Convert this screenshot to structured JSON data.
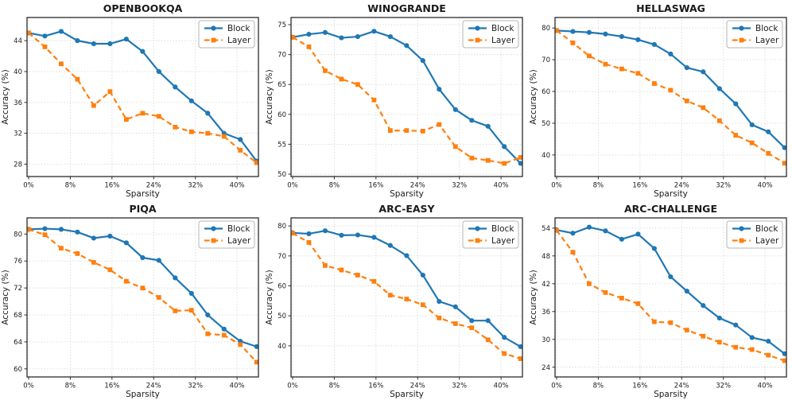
{
  "figure": {
    "background": "#ffffff",
    "grid_style": "dotted",
    "legend_position": "upper right",
    "colors": {
      "block": "#1f77b4",
      "layer": "#ff7f0e"
    }
  },
  "chart_data": [
    {
      "type": "line",
      "title": "OPENBOOKQA",
      "xlabel": "Sparsity",
      "ylabel": "Accuracy (%)",
      "x": [
        0,
        3.125,
        6.25,
        9.375,
        12.5,
        15.625,
        18.75,
        21.875,
        25,
        28.125,
        31.25,
        34.375,
        37.5,
        40.625,
        43.75
      ],
      "xtick_values": [
        0,
        8,
        16,
        24,
        32,
        40
      ],
      "xtick_labels": [
        "0%",
        "8%",
        "16%",
        "24%",
        "32%",
        "40%"
      ],
      "yticks": [
        28,
        32,
        36,
        40,
        44
      ],
      "ylim": [
        26.4,
        47.0
      ],
      "xlim": [
        -0.3,
        44.1
      ],
      "grid": true,
      "legend": "upper right",
      "series": [
        {
          "name": "Block",
          "color": "#1f77b4",
          "style": "solid",
          "marker": "circle",
          "values": [
            45.0,
            44.6,
            45.2,
            44.0,
            43.6,
            43.6,
            44.2,
            42.6,
            40.0,
            38.0,
            36.2,
            34.6,
            32.0,
            31.2,
            28.4
          ]
        },
        {
          "name": "Layer",
          "color": "#ff7f0e",
          "style": "dashed",
          "marker": "square",
          "values": [
            45.0,
            43.2,
            41.0,
            39.0,
            35.6,
            37.4,
            33.8,
            34.6,
            34.2,
            32.8,
            32.2,
            32.0,
            31.6,
            29.8,
            28.2
          ]
        }
      ]
    },
    {
      "type": "line",
      "title": "WINOGRANDE",
      "xlabel": "Sparsity",
      "ylabel": "Accuracy (%)",
      "x": [
        0,
        3.125,
        6.25,
        9.375,
        12.5,
        15.625,
        18.75,
        21.875,
        25,
        28.125,
        31.25,
        34.375,
        37.5,
        40.625,
        43.75
      ],
      "xtick_values": [
        0,
        8,
        16,
        24,
        32,
        40
      ],
      "xtick_labels": [
        "0%",
        "8%",
        "16%",
        "24%",
        "32%",
        "40%"
      ],
      "yticks": [
        50,
        55,
        60,
        65,
        70,
        75
      ],
      "ylim": [
        49.6,
        76.2
      ],
      "xlim": [
        -0.3,
        44.1
      ],
      "grid": true,
      "legend": "upper right",
      "series": [
        {
          "name": "Block",
          "color": "#1f77b4",
          "style": "solid",
          "marker": "circle",
          "values": [
            72.9,
            73.4,
            73.7,
            72.8,
            73.0,
            73.9,
            73.0,
            71.5,
            69.0,
            64.2,
            60.8,
            59.0,
            58.0,
            54.6,
            51.8
          ]
        },
        {
          "name": "Layer",
          "color": "#ff7f0e",
          "style": "dashed",
          "marker": "square",
          "values": [
            72.9,
            71.3,
            67.3,
            65.9,
            65.0,
            62.4,
            57.3,
            57.3,
            57.2,
            58.3,
            54.6,
            52.7,
            52.3,
            51.8,
            52.8
          ]
        }
      ]
    },
    {
      "type": "line",
      "title": "HELLASWAG",
      "xlabel": "Sparsity",
      "ylabel": "Accuracy (%)",
      "x": [
        0,
        3.125,
        6.25,
        9.375,
        12.5,
        15.625,
        18.75,
        21.875,
        25,
        28.125,
        31.25,
        34.375,
        37.5,
        40.625,
        43.75
      ],
      "xtick_values": [
        0,
        8,
        16,
        24,
        32,
        40
      ],
      "xtick_labels": [
        "0%",
        "8%",
        "16%",
        "24%",
        "32%",
        "40%"
      ],
      "yticks": [
        40,
        50,
        60,
        70,
        80
      ],
      "ylim": [
        33.2,
        83.3
      ],
      "xlim": [
        -0.3,
        44.1
      ],
      "grid": true,
      "legend": "upper right",
      "series": [
        {
          "name": "Block",
          "color": "#1f77b4",
          "style": "solid",
          "marker": "circle",
          "values": [
            79.2,
            78.9,
            78.6,
            78.1,
            77.3,
            76.3,
            74.8,
            71.8,
            67.5,
            66.2,
            60.9,
            56.1,
            49.5,
            47.3,
            42.3
          ]
        },
        {
          "name": "Layer",
          "color": "#ff7f0e",
          "style": "dashed",
          "marker": "square",
          "values": [
            79.2,
            75.3,
            71.2,
            68.6,
            67.1,
            65.7,
            62.5,
            60.4,
            57.0,
            54.9,
            50.8,
            46.2,
            43.8,
            40.5,
            37.4
          ]
        }
      ]
    },
    {
      "type": "line",
      "title": "PIQA",
      "xlabel": "Sparsity",
      "ylabel": "Accuracy (%)",
      "x": [
        0,
        3.125,
        6.25,
        9.375,
        12.5,
        15.625,
        18.75,
        21.875,
        25,
        28.125,
        31.25,
        34.375,
        37.5,
        40.625,
        43.75
      ],
      "xtick_values": [
        0,
        8,
        16,
        24,
        32,
        40
      ],
      "xtick_labels": [
        "0%",
        "8%",
        "16%",
        "24%",
        "32%",
        "40%"
      ],
      "yticks": [
        60,
        64,
        68,
        72,
        76,
        80
      ],
      "ylim": [
        58.8,
        82.4
      ],
      "xlim": [
        -0.3,
        44.1
      ],
      "grid": true,
      "legend": "upper right",
      "series": [
        {
          "name": "Block",
          "color": "#1f77b4",
          "style": "solid",
          "marker": "circle",
          "values": [
            80.7,
            80.8,
            80.7,
            80.3,
            79.4,
            79.7,
            78.7,
            76.5,
            76.1,
            73.5,
            71.2,
            68.0,
            65.9,
            64.1,
            63.3
          ]
        },
        {
          "name": "Layer",
          "color": "#ff7f0e",
          "style": "dashed",
          "marker": "square",
          "values": [
            80.7,
            79.9,
            77.9,
            77.1,
            75.8,
            74.7,
            73.0,
            72.0,
            70.6,
            68.6,
            68.7,
            65.2,
            65.0,
            63.6,
            61.0
          ]
        }
      ]
    },
    {
      "type": "line",
      "title": "ARC-EASY",
      "xlabel": "Sparsity",
      "ylabel": "Accuracy (%)",
      "x": [
        0,
        3.125,
        6.25,
        9.375,
        12.5,
        15.625,
        18.75,
        21.875,
        25,
        28.125,
        31.25,
        34.375,
        37.5,
        40.625,
        43.75
      ],
      "xtick_values": [
        0,
        8,
        16,
        24,
        32,
        40
      ],
      "xtick_labels": [
        "0%",
        "8%",
        "16%",
        "24%",
        "32%",
        "40%"
      ],
      "yticks": [
        40,
        50,
        60,
        70,
        80
      ],
      "ylim": [
        29.6,
        82.7
      ],
      "xlim": [
        -0.3,
        44.1
      ],
      "grid": true,
      "legend": "upper right",
      "series": [
        {
          "name": "Block",
          "color": "#1f77b4",
          "style": "solid",
          "marker": "circle",
          "values": [
            77.7,
            77.4,
            78.4,
            76.9,
            77.0,
            76.2,
            73.5,
            70.1,
            63.6,
            54.8,
            53.0,
            48.4,
            48.4,
            42.8,
            39.7
          ]
        },
        {
          "name": "Layer",
          "color": "#ff7f0e",
          "style": "dashed",
          "marker": "square",
          "values": [
            77.6,
            74.5,
            66.8,
            65.3,
            63.6,
            61.5,
            56.9,
            55.6,
            53.7,
            49.3,
            47.4,
            46.0,
            42.0,
            37.4,
            35.7
          ]
        }
      ]
    },
    {
      "type": "line",
      "title": "ARC-CHALLENGE",
      "xlabel": "Sparsity",
      "ylabel": "Accuracy (%)",
      "x": [
        0,
        3.125,
        6.25,
        9.375,
        12.5,
        15.625,
        18.75,
        21.875,
        25,
        28.125,
        31.25,
        34.375,
        37.5,
        40.625,
        43.75
      ],
      "xtick_values": [
        0,
        8,
        16,
        24,
        32,
        40
      ],
      "xtick_labels": [
        "0%",
        "8%",
        "16%",
        "24%",
        "32%",
        "40%"
      ],
      "yticks": [
        24,
        30,
        36,
        42,
        48,
        54
      ],
      "ylim": [
        21.9,
        56.2
      ],
      "xlim": [
        -0.3,
        44.1
      ],
      "grid": true,
      "legend": "upper right",
      "series": [
        {
          "name": "Block",
          "color": "#1f77b4",
          "style": "solid",
          "marker": "circle",
          "values": [
            53.6,
            52.9,
            54.2,
            53.4,
            51.6,
            52.7,
            49.6,
            43.5,
            40.4,
            37.3,
            34.6,
            33.1,
            30.4,
            29.6,
            26.9
          ]
        },
        {
          "name": "Layer",
          "color": "#ff7f0e",
          "style": "dashed",
          "marker": "square",
          "values": [
            53.5,
            48.8,
            42.0,
            40.1,
            38.9,
            37.7,
            33.8,
            33.6,
            32.0,
            30.7,
            29.4,
            28.3,
            27.8,
            26.6,
            25.4
          ]
        }
      ]
    }
  ]
}
